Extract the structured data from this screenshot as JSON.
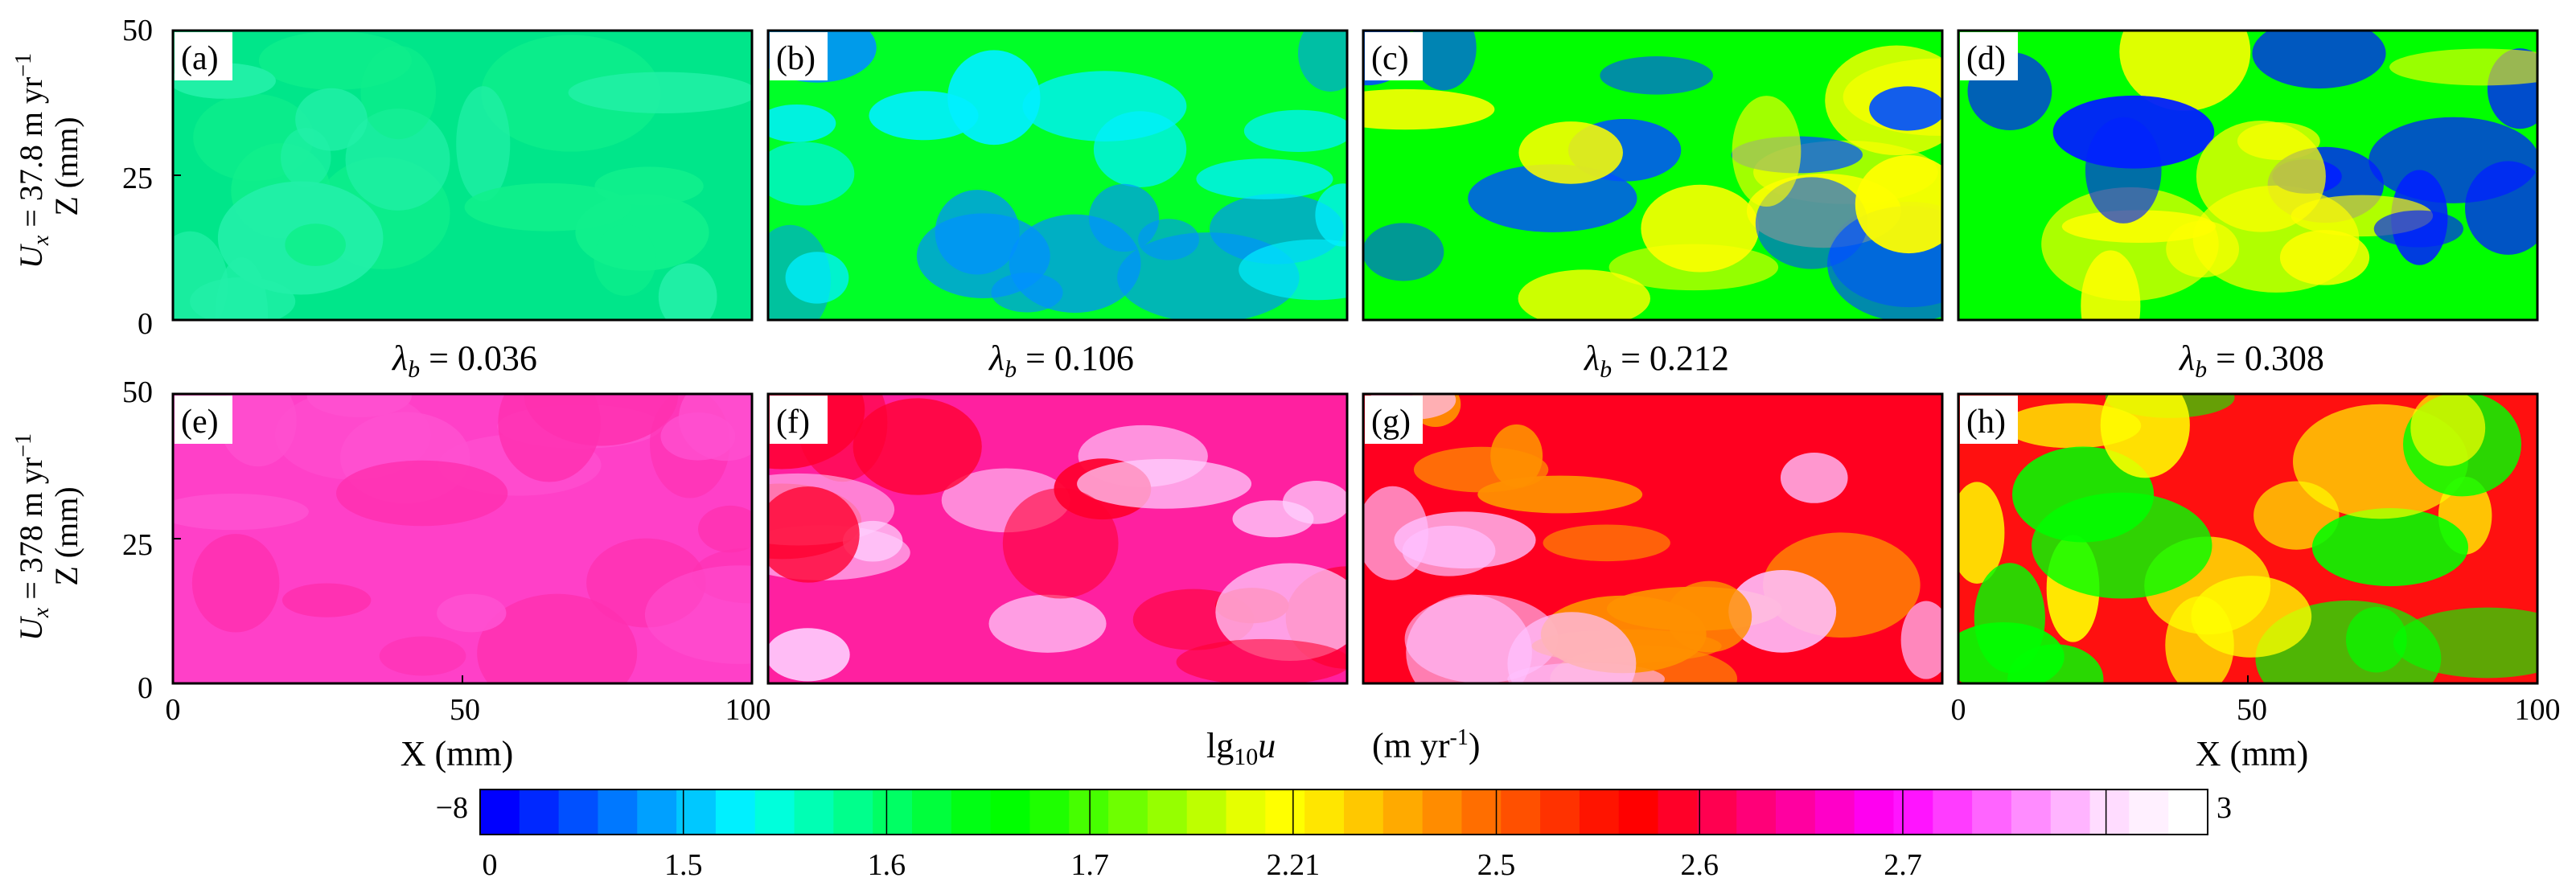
{
  "chart_data": {
    "type": "heatmap",
    "description_variable": "lg10u",
    "rows": [
      {
        "label_prefix": "U",
        "label_sub": "x",
        "label_value": " = 37.8 m yr",
        "label_sup": "−1"
      },
      {
        "label_prefix": "U",
        "label_sub": "x",
        "label_value": " = 378 m yr",
        "label_sup": "−1"
      }
    ],
    "lambda_labels": [
      {
        "symbol": "λ",
        "sub": "b",
        "text": " = 0.036"
      },
      {
        "symbol": "λ",
        "sub": "b",
        "text": " = 0.106"
      },
      {
        "symbol": "λ",
        "sub": "b",
        "text": " = 0.212"
      },
      {
        "symbol": "λ",
        "sub": "b",
        "text": " = 0.308"
      }
    ],
    "panels": [
      {
        "tag": "(a)",
        "row": 0,
        "col": 0,
        "dominant_colors": [
          "#00e68a",
          "#22f0a8",
          "#10f08c"
        ]
      },
      {
        "tag": "(b)",
        "row": 0,
        "col": 1,
        "dominant_colors": [
          "#00ff28",
          "#00f0ff",
          "#0090ff"
        ]
      },
      {
        "tag": "(c)",
        "row": 0,
        "col": 2,
        "dominant_colors": [
          "#00ff00",
          "#0050ff",
          "#ffff00"
        ]
      },
      {
        "tag": "(d)",
        "row": 0,
        "col": 3,
        "dominant_colors": [
          "#00ff00",
          "#0020ff",
          "#ffff00"
        ]
      },
      {
        "tag": "(e)",
        "row": 1,
        "col": 0,
        "dominant_colors": [
          "#ff40c8",
          "#ff30b0",
          "#ff50d0"
        ]
      },
      {
        "tag": "(f)",
        "row": 1,
        "col": 1,
        "dominant_colors": [
          "#ff20a0",
          "#ff0030",
          "#ffd0ff"
        ]
      },
      {
        "tag": "(g)",
        "row": 1,
        "col": 2,
        "dominant_colors": [
          "#ff0020",
          "#ffc0ff",
          "#ff9000"
        ]
      },
      {
        "tag": "(h)",
        "row": 1,
        "col": 3,
        "dominant_colors": [
          "#ff1010",
          "#00ff00",
          "#ffff00"
        ]
      }
    ],
    "x_axis": {
      "label": "X (mm)",
      "ticks": [
        "0",
        "50",
        "100"
      ],
      "range": [
        0,
        100
      ]
    },
    "y_axis": {
      "label": "Z (mm)",
      "ticks": [
        "0",
        "25",
        "50"
      ],
      "range": [
        0,
        50
      ]
    },
    "colorbar": {
      "title_main": "lg",
      "title_sub": "10",
      "title_var": "u",
      "units_text": "(m yr",
      "units_sup": "-1",
      "units_close": ")",
      "min_label": "−8",
      "max_label": "3",
      "tick_labels": [
        "0",
        "1.5",
        "1.6",
        "1.7",
        "2.21",
        "2.5",
        "2.6",
        "2.7"
      ],
      "colors": [
        "#0000ff",
        "#0028ff",
        "#0050ff",
        "#0078ff",
        "#00a0ff",
        "#00c8ff",
        "#00f0ff",
        "#00ffdc",
        "#00ffb4",
        "#00ff8c",
        "#00ff64",
        "#00ff3c",
        "#00ff14",
        "#00ff00",
        "#1eff00",
        "#46ff00",
        "#6eff00",
        "#96ff00",
        "#beff00",
        "#e6ff00",
        "#ffff00",
        "#ffe600",
        "#ffc800",
        "#ffaa00",
        "#ff8c00",
        "#ff6e00",
        "#ff5000",
        "#ff3200",
        "#ff1400",
        "#ff0000",
        "#ff0028",
        "#ff0050",
        "#ff0078",
        "#ff00a0",
        "#ff00c8",
        "#ff00f0",
        "#ff14ff",
        "#ff3cff",
        "#ff64ff",
        "#ff8cff",
        "#ffb4ff",
        "#ffdcff",
        "#fff0ff",
        "#ffffff"
      ]
    }
  }
}
